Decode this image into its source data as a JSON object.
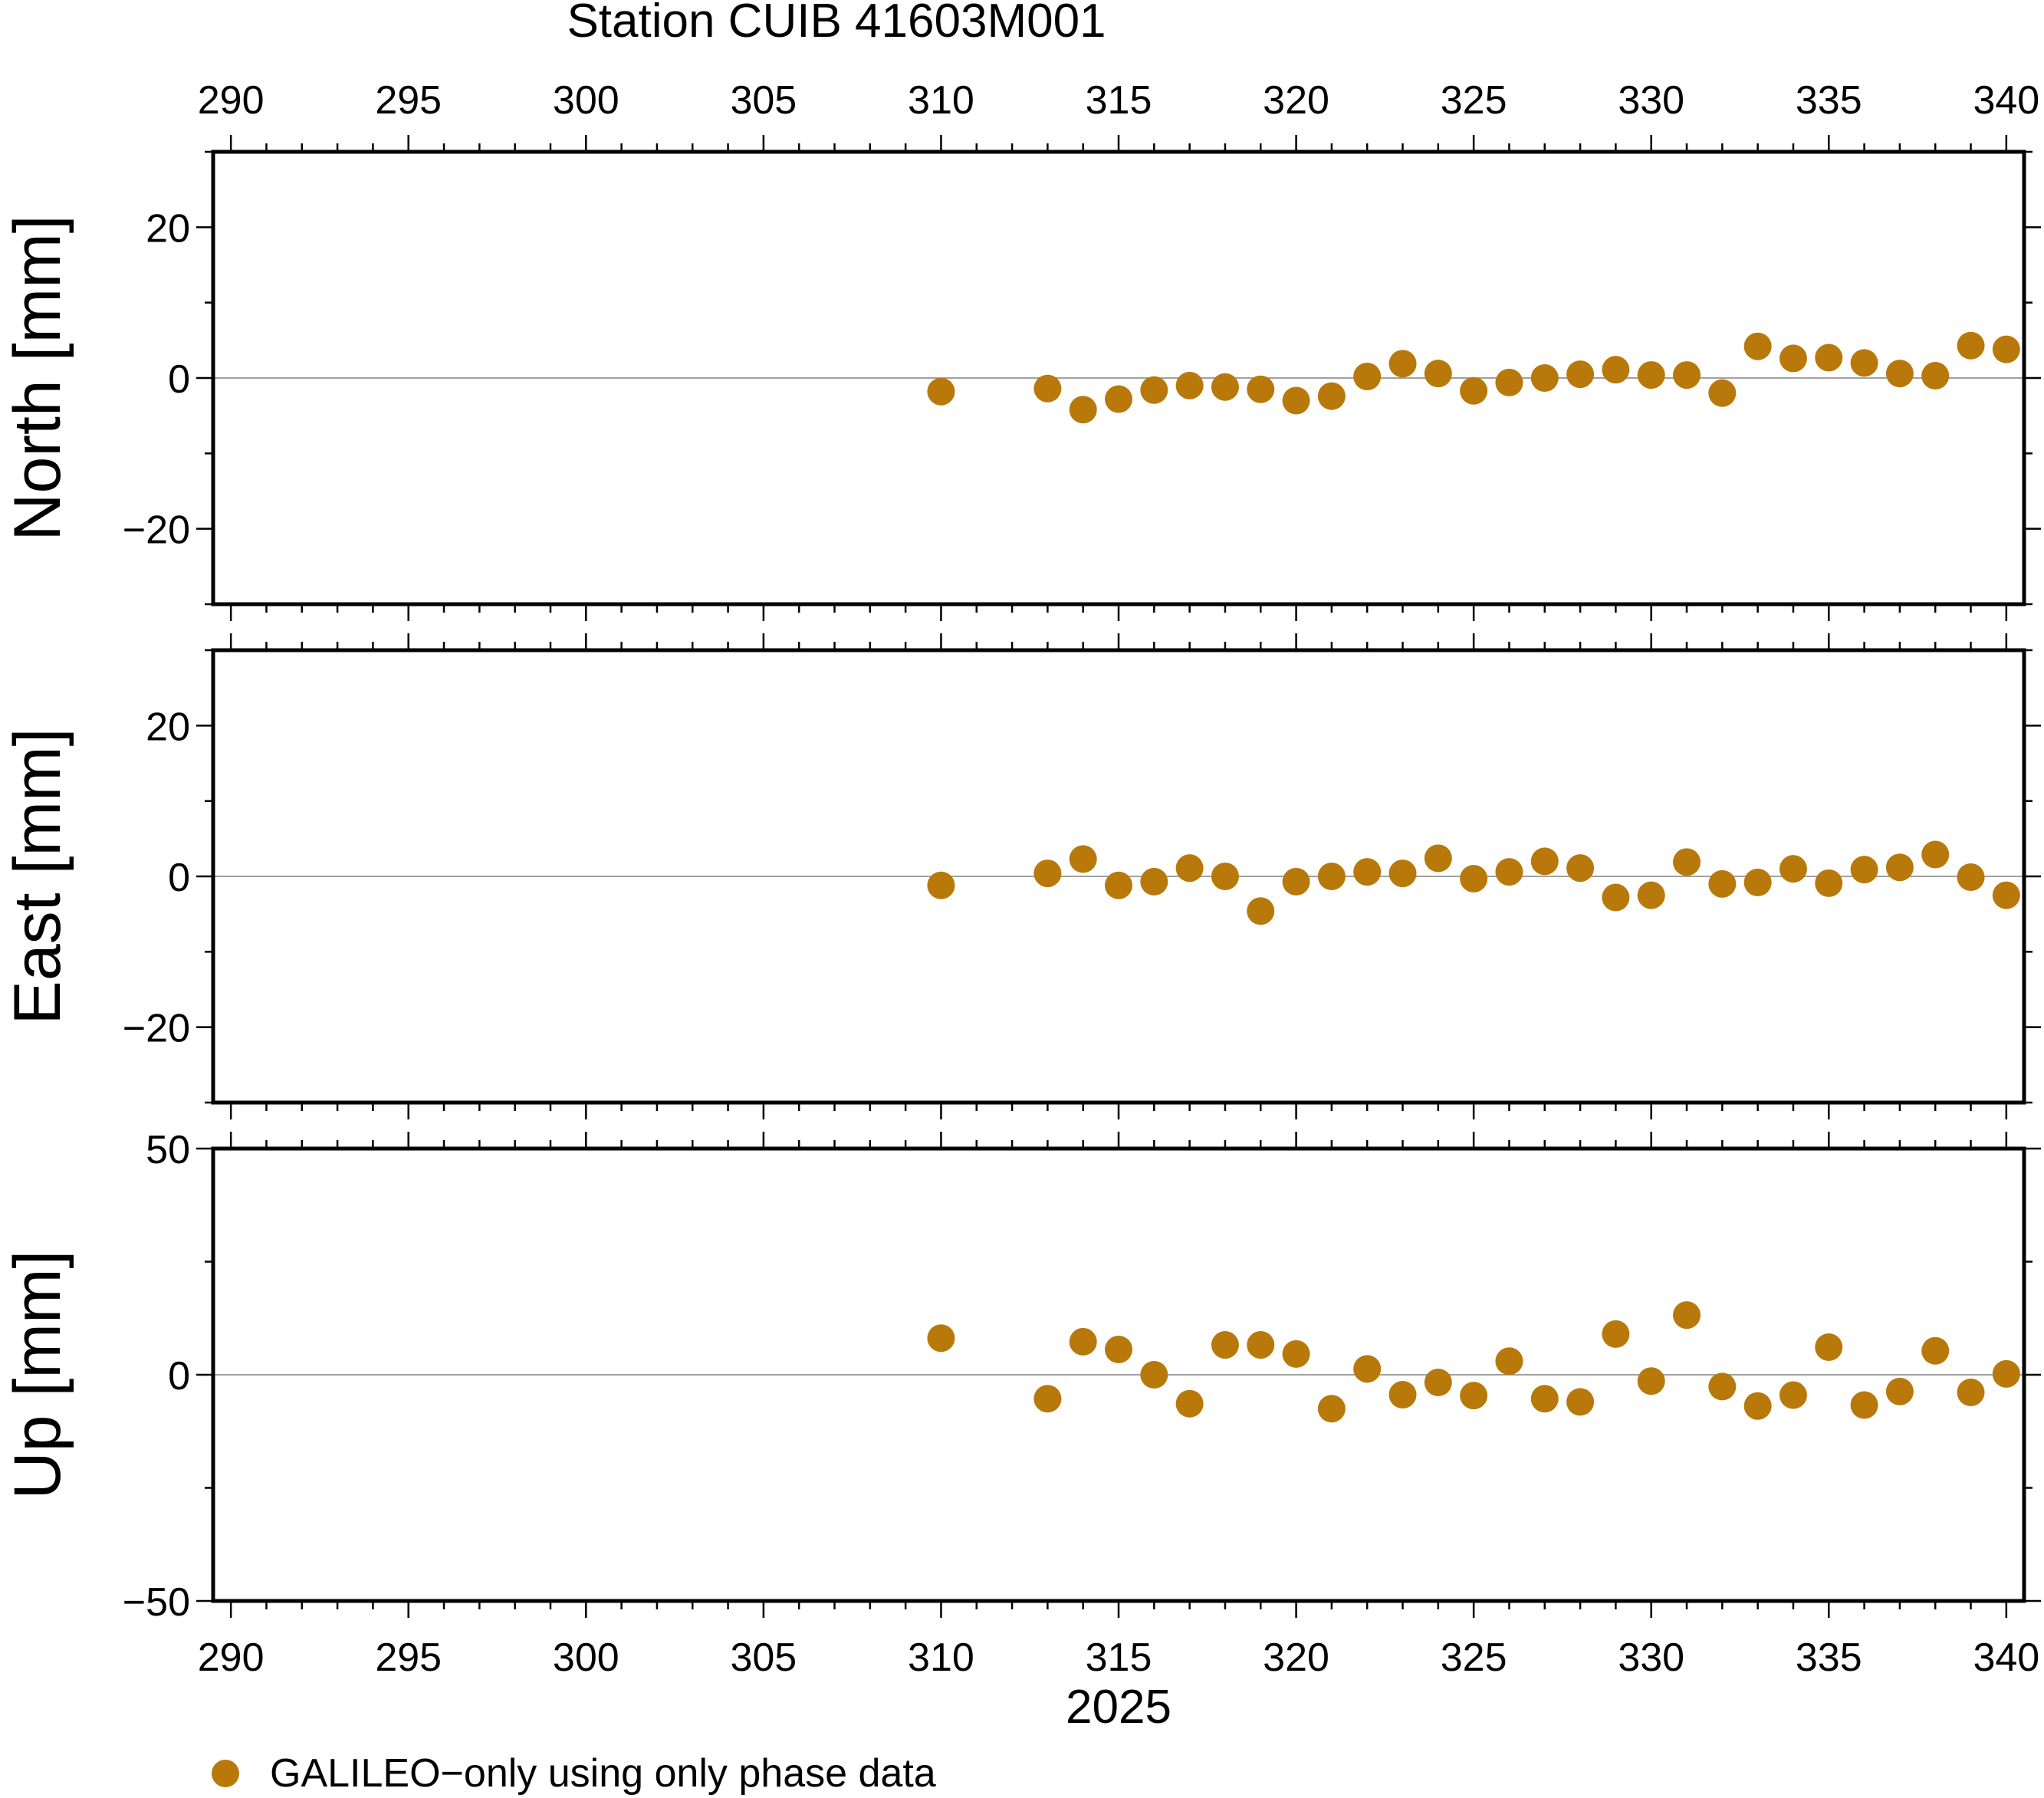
{
  "chart_data": {
    "type": "scatter",
    "title": "Station CUIB 41603M001",
    "xlabel": "2025",
    "xlim": [
      289.5,
      340.5
    ],
    "xticks": [
      290,
      295,
      300,
      305,
      310,
      315,
      320,
      325,
      330,
      335,
      340
    ],
    "x": [
      310,
      313,
      314,
      315,
      316,
      317,
      318,
      319,
      320,
      321,
      322,
      323,
      324,
      325,
      326,
      327,
      328,
      329,
      330,
      331,
      332,
      333,
      334,
      335,
      336,
      337,
      338,
      339,
      340
    ],
    "marker_color": "#b8790a",
    "grid": false,
    "zero_line": true,
    "legend": {
      "position": "bottom-left",
      "label": "GALILEO−only using only phase data"
    },
    "panels": [
      {
        "ylabel": "North [mm]",
        "ylim": [
          -30,
          30
        ],
        "yticks": [
          20,
          0,
          -20
        ],
        "ytick_labels": [
          "20",
          "0",
          "−20"
        ],
        "values": [
          -1.8,
          -1.4,
          -4.2,
          -2.8,
          -1.6,
          -1.0,
          -1.2,
          -1.5,
          -3.0,
          -2.4,
          0.2,
          1.9,
          0.6,
          -1.7,
          -0.6,
          0.0,
          0.5,
          1.1,
          0.4,
          0.4,
          -2.0,
          4.2,
          2.6,
          2.7,
          2.0,
          0.6,
          0.3,
          4.3,
          3.8
        ]
      },
      {
        "ylabel": "East [mm]",
        "ylim": [
          -30,
          30
        ],
        "yticks": [
          20,
          0,
          -20
        ],
        "ytick_labels": [
          "20",
          "0",
          "−20"
        ],
        "values": [
          -1.2,
          0.4,
          2.3,
          -1.2,
          -0.7,
          1.1,
          0.0,
          -4.6,
          -0.7,
          0.0,
          0.6,
          0.4,
          2.4,
          -0.3,
          0.6,
          2.0,
          1.1,
          -2.8,
          -2.5,
          1.9,
          -1.0,
          -0.8,
          1.0,
          -0.9,
          0.9,
          1.2,
          2.9,
          -0.1,
          -2.5
        ]
      },
      {
        "ylabel": "Up [mm]",
        "ylim": [
          -50,
          50
        ],
        "yticks": [
          50,
          0,
          -50
        ],
        "ytick_labels": [
          "50",
          "0",
          "−50"
        ],
        "values": [
          8.1,
          -5.3,
          7.3,
          5.6,
          0.0,
          -6.4,
          6.6,
          6.6,
          4.6,
          -7.5,
          1.3,
          -4.4,
          -1.7,
          -4.6,
          3.0,
          -5.3,
          -6.0,
          9.0,
          -1.4,
          13.2,
          -2.6,
          -6.9,
          -4.5,
          6.1,
          -6.7,
          -3.7,
          5.3,
          -3.9,
          0.2
        ]
      }
    ]
  }
}
